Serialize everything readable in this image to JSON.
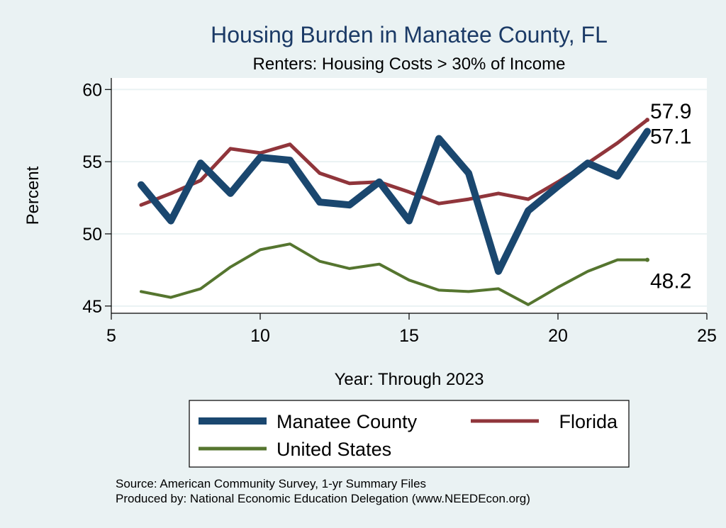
{
  "chart_data": {
    "type": "line",
    "title": "Housing Burden in Manatee County, FL",
    "subtitle": "Renters: Housing Costs > 30% of Income",
    "xlabel": "Year: Through 2023",
    "ylabel": "Percent",
    "xlim": [
      5,
      25
    ],
    "ylim": [
      44.5,
      60.8
    ],
    "xticks": [
      5,
      10,
      15,
      20,
      25
    ],
    "yticks": [
      45,
      50,
      55,
      60
    ],
    "grid": true,
    "legend_position": "bottom",
    "series": [
      {
        "name": "Manatee County",
        "color": "#1a476f",
        "x": [
          6,
          7,
          8,
          9,
          10,
          11,
          12,
          13,
          14,
          15,
          16,
          17,
          18,
          19,
          20,
          21,
          22,
          23
        ],
        "values": [
          53.4,
          50.9,
          54.9,
          52.8,
          55.3,
          55.1,
          52.2,
          52.0,
          53.6,
          50.9,
          56.6,
          54.2,
          47.4,
          51.6,
          53.3,
          54.9,
          54.0,
          57.1
        ],
        "end_label": "57.1"
      },
      {
        "name": "Florida",
        "color": "#90353b",
        "x": [
          6,
          7,
          8,
          9,
          10,
          11,
          12,
          13,
          14,
          15,
          16,
          17,
          18,
          19,
          20,
          21,
          22,
          23
        ],
        "values": [
          52.0,
          52.8,
          53.7,
          55.9,
          55.6,
          56.2,
          54.2,
          53.5,
          53.6,
          52.9,
          52.1,
          52.4,
          52.8,
          52.4,
          53.6,
          54.9,
          56.3,
          57.9
        ],
        "end_label": "57.9"
      },
      {
        "name": "United States",
        "color": "#55752f",
        "x": [
          6,
          7,
          8,
          9,
          10,
          11,
          12,
          13,
          14,
          15,
          16,
          17,
          18,
          19,
          20,
          21,
          22,
          23
        ],
        "values": [
          46.0,
          45.6,
          46.2,
          47.7,
          48.9,
          49.3,
          48.1,
          47.6,
          47.9,
          46.8,
          46.1,
          46.0,
          46.2,
          45.1,
          46.3,
          47.4,
          48.2,
          48.2
        ],
        "end_label": "48.2"
      }
    ]
  },
  "source": {
    "line1": "Source: American Community Survey, 1-yr Summary Files",
    "line2": "Produced by: National Economic Education Delegation (www.NEEDEcon.org)"
  }
}
